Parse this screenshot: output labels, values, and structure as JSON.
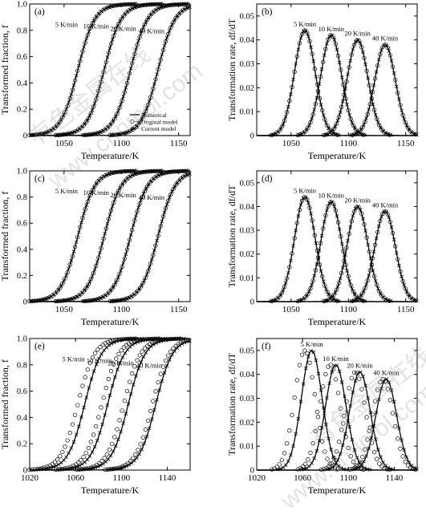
{
  "watermark": {
    "cn": "有色金属在线",
    "url": "www.cnnmol.com"
  },
  "legend": {
    "numerical": "Numerical",
    "original": "Original model",
    "current": "Current model"
  },
  "charts": [
    {
      "panel": "(a)",
      "type": "line",
      "kind": "fraction",
      "xlabel": "Temperature/K",
      "ylabel": "Transformed fraction, f",
      "xlim": [
        1020,
        1160
      ],
      "ylim": [
        0,
        1.0
      ],
      "xticks": [
        "1050",
        "1100",
        "1150"
      ],
      "xtick_values": [
        1050,
        1100,
        1150
      ],
      "yticks": [
        "0",
        "0.2",
        "0.4",
        "0.6",
        "0.8",
        "1.0"
      ],
      "ytick_values": [
        0,
        0.2,
        0.4,
        0.6,
        0.8,
        1.0
      ],
      "series": [
        {
          "name": "5 K/min",
          "midpoint": 1062,
          "shift_original": 0,
          "shift_current": 0
        },
        {
          "name": "10 K/min",
          "midpoint": 1085,
          "shift_original": 0,
          "shift_current": 0
        },
        {
          "name": "20 K/min",
          "midpoint": 1108,
          "shift_original": 0,
          "shift_current": 0
        },
        {
          "name": "40 K/min",
          "midpoint": 1132,
          "shift_original": 0,
          "shift_current": 0
        }
      ]
    },
    {
      "panel": "(b)",
      "type": "line",
      "kind": "rate",
      "xlabel": "Temperature/K",
      "ylabel": "Transformation rate, df/dT",
      "xlim": [
        1020,
        1160
      ],
      "ylim": [
        0,
        0.055
      ],
      "xticks": [
        "1050",
        "1100",
        "1150"
      ],
      "xtick_values": [
        1050,
        1100,
        1150
      ],
      "yticks": [
        "0",
        "0.01",
        "0.02",
        "0.03",
        "0.04",
        "0.05"
      ],
      "ytick_values": [
        0,
        0.01,
        0.02,
        0.03,
        0.04,
        0.05
      ],
      "series": [
        {
          "name": "5 K/min",
          "peak_x": 1062,
          "peak_y": 0.044,
          "shift_original": 0,
          "shift_current": 0
        },
        {
          "name": "10 K/min",
          "peak_x": 1085,
          "peak_y": 0.042,
          "shift_original": 0,
          "shift_current": 0
        },
        {
          "name": "20 K/min",
          "peak_x": 1108,
          "peak_y": 0.04,
          "shift_original": 0,
          "shift_current": 0
        },
        {
          "name": "40 K/min",
          "peak_x": 1132,
          "peak_y": 0.038,
          "shift_original": 0,
          "shift_current": 0
        }
      ]
    },
    {
      "panel": "(c)",
      "type": "line",
      "kind": "fraction",
      "xlabel": "Temperature/K",
      "ylabel": "Transformed fraction, f",
      "xlim": [
        1020,
        1160
      ],
      "ylim": [
        0,
        1.0
      ],
      "xticks": [
        "1050",
        "1100",
        "1150"
      ],
      "xtick_values": [
        1050,
        1100,
        1150
      ],
      "yticks": [
        "0",
        "0.2",
        "0.4",
        "0.6",
        "0.8",
        "1.0"
      ],
      "ytick_values": [
        0,
        0.2,
        0.4,
        0.6,
        0.8,
        1.0
      ],
      "series": [
        {
          "name": "5 K/min",
          "midpoint": 1062,
          "shift_original": 0,
          "shift_current": 0
        },
        {
          "name": "10 K/min",
          "midpoint": 1085,
          "shift_original": 0,
          "shift_current": 0
        },
        {
          "name": "20 K/min",
          "midpoint": 1108,
          "shift_original": 0,
          "shift_current": 0
        },
        {
          "name": "40 K/min",
          "midpoint": 1132,
          "shift_original": 0,
          "shift_current": 0
        }
      ]
    },
    {
      "panel": "(d)",
      "type": "line",
      "kind": "rate",
      "xlabel": "Temperature/K",
      "ylabel": "Transformation rate, df/dT",
      "xlim": [
        1020,
        1160
      ],
      "ylim": [
        0,
        0.055
      ],
      "xticks": [
        "1050",
        "1100",
        "1150"
      ],
      "xtick_values": [
        1050,
        1100,
        1150
      ],
      "yticks": [
        "0",
        "0.01",
        "0.02",
        "0.03",
        "0.04",
        "0.05"
      ],
      "ytick_values": [
        0,
        0.01,
        0.02,
        0.03,
        0.04,
        0.05
      ],
      "series": [
        {
          "name": "5 K/min",
          "peak_x": 1062,
          "peak_y": 0.044,
          "shift_original": 0,
          "shift_current": 0
        },
        {
          "name": "10 K/min",
          "peak_x": 1085,
          "peak_y": 0.042,
          "shift_original": 0,
          "shift_current": 0
        },
        {
          "name": "20 K/min",
          "peak_x": 1108,
          "peak_y": 0.04,
          "shift_original": 0,
          "shift_current": 0
        },
        {
          "name": "40 K/min",
          "peak_x": 1132,
          "peak_y": 0.038,
          "shift_original": 0,
          "shift_current": 0
        }
      ]
    },
    {
      "panel": "(e)",
      "type": "line",
      "kind": "fraction",
      "xlabel": "Temperature/K",
      "ylabel": "Transformed fraction, f",
      "xlim": [
        1020,
        1160
      ],
      "ylim": [
        0,
        1.0
      ],
      "xticks": [
        "1020",
        "1060",
        "1100",
        "1140"
      ],
      "xtick_values": [
        1020,
        1060,
        1100,
        1140
      ],
      "yticks": [
        "0",
        "0.2",
        "0.4",
        "0.6",
        "0.8",
        "1.0"
      ],
      "ytick_values": [
        0,
        0.2,
        0.4,
        0.6,
        0.8,
        1.0
      ],
      "series": [
        {
          "name": "5 K/min",
          "midpoint": 1068,
          "shift_original": -6,
          "shift_current": 0
        },
        {
          "name": "10 K/min",
          "midpoint": 1088,
          "shift_original": -5,
          "shift_current": 0
        },
        {
          "name": "20 K/min",
          "midpoint": 1106,
          "shift_original": -4,
          "shift_current": 0
        },
        {
          "name": "40 K/min",
          "midpoint": 1130,
          "shift_original": -3,
          "shift_current": 0
        }
      ]
    },
    {
      "panel": "(f)",
      "type": "line",
      "kind": "rate",
      "xlabel": "Temperature/K",
      "ylabel": "Transformation rate, df/dT",
      "xlim": [
        1020,
        1160
      ],
      "ylim": [
        0,
        0.055
      ],
      "xticks": [
        "1020",
        "1060",
        "1100",
        "1140"
      ],
      "xtick_values": [
        1020,
        1060,
        1100,
        1140
      ],
      "yticks": [
        "0",
        "0.01",
        "0.02",
        "0.03",
        "0.04",
        "0.05"
      ],
      "ytick_values": [
        0,
        0.01,
        0.02,
        0.03,
        0.04,
        0.05
      ],
      "series": [
        {
          "name": "5 K/min",
          "peak_x": 1068,
          "peak_y": 0.05,
          "shift_original": -6,
          "shift_current": 0
        },
        {
          "name": "10 K/min",
          "peak_x": 1089,
          "peak_y": 0.044,
          "shift_original": -5,
          "shift_current": 0
        },
        {
          "name": "20 K/min",
          "peak_x": 1110,
          "peak_y": 0.041,
          "shift_original": -4,
          "shift_current": 0
        },
        {
          "name": "40 K/min",
          "peak_x": 1133,
          "peak_y": 0.038,
          "shift_original": -3,
          "shift_current": 0
        }
      ]
    }
  ],
  "chart_data": [
    {
      "type": "line",
      "title": "(a)",
      "xlabel": "Temperature/K",
      "ylabel": "Transformed fraction, f",
      "xlim": [
        1020,
        1160
      ],
      "ylim": [
        0,
        1.0
      ],
      "series": [
        {
          "name": "5 K/min",
          "midpoint": 1062
        },
        {
          "name": "10 K/min",
          "midpoint": 1085
        },
        {
          "name": "20 K/min",
          "midpoint": 1108
        },
        {
          "name": "40 K/min",
          "midpoint": 1132
        }
      ]
    },
    {
      "type": "line",
      "title": "(b)",
      "xlabel": "Temperature/K",
      "ylabel": "Transformation rate, df/dT",
      "xlim": [
        1020,
        1160
      ],
      "ylim": [
        0,
        0.055
      ],
      "series": [
        {
          "name": "5 K/min",
          "peak_x": 1062,
          "peak_y": 0.044
        },
        {
          "name": "10 K/min",
          "peak_x": 1085,
          "peak_y": 0.042
        },
        {
          "name": "20 K/min",
          "peak_x": 1108,
          "peak_y": 0.04
        },
        {
          "name": "40 K/min",
          "peak_x": 1132,
          "peak_y": 0.038
        }
      ]
    },
    {
      "type": "line",
      "title": "(c)",
      "xlabel": "Temperature/K",
      "ylabel": "Transformed fraction, f",
      "xlim": [
        1020,
        1160
      ],
      "ylim": [
        0,
        1.0
      ],
      "series": [
        {
          "name": "5 K/min",
          "midpoint": 1062
        },
        {
          "name": "10 K/min",
          "midpoint": 1085
        },
        {
          "name": "20 K/min",
          "midpoint": 1108
        },
        {
          "name": "40 K/min",
          "midpoint": 1132
        }
      ]
    },
    {
      "type": "line",
      "title": "(d)",
      "xlabel": "Temperature/K",
      "ylabel": "Transformation rate, df/dT",
      "xlim": [
        1020,
        1160
      ],
      "ylim": [
        0,
        0.055
      ],
      "series": [
        {
          "name": "5 K/min",
          "peak_x": 1062,
          "peak_y": 0.044
        },
        {
          "name": "10 K/min",
          "peak_x": 1085,
          "peak_y": 0.042
        },
        {
          "name": "20 K/min",
          "peak_x": 1108,
          "peak_y": 0.04
        },
        {
          "name": "40 K/min",
          "peak_x": 1132,
          "peak_y": 0.038
        }
      ]
    },
    {
      "type": "line",
      "title": "(e)",
      "xlabel": "Temperature/K",
      "ylabel": "Transformed fraction, f",
      "xlim": [
        1020,
        1160
      ],
      "ylim": [
        0,
        1.0
      ],
      "series": [
        {
          "name": "5 K/min",
          "midpoint": 1068
        },
        {
          "name": "10 K/min",
          "midpoint": 1088
        },
        {
          "name": "20 K/min",
          "midpoint": 1106
        },
        {
          "name": "40 K/min",
          "midpoint": 1130
        }
      ]
    },
    {
      "type": "line",
      "title": "(f)",
      "xlabel": "Temperature/K",
      "ylabel": "Transformation rate, df/dT",
      "xlim": [
        1020,
        1160
      ],
      "ylim": [
        0,
        0.055
      ],
      "series": [
        {
          "name": "5 K/min",
          "peak_x": 1068,
          "peak_y": 0.05
        },
        {
          "name": "10 K/min",
          "peak_x": 1089,
          "peak_y": 0.044
        },
        {
          "name": "20 K/min",
          "peak_x": 1110,
          "peak_y": 0.041
        },
        {
          "name": "40 K/min",
          "peak_x": 1133,
          "peak_y": 0.038
        }
      ]
    }
  ]
}
